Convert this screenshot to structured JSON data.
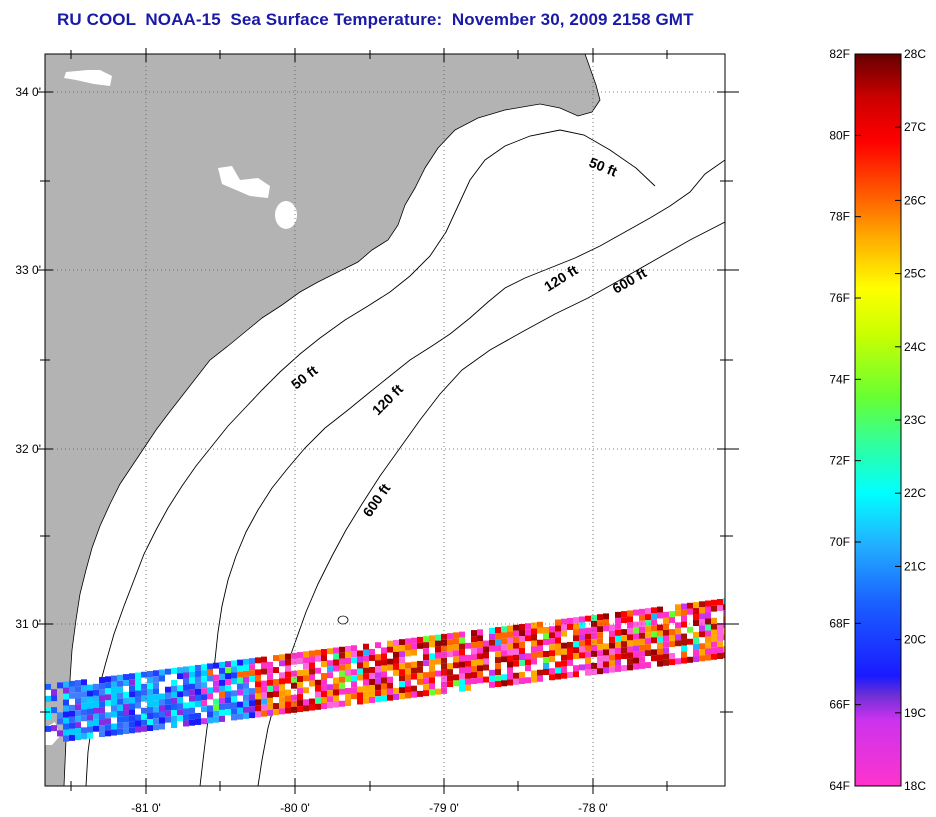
{
  "title": "RU COOL  NOAA-15  Sea Surface Temperature:  November 30, 2009 2158 GMT",
  "map": {
    "lat_labels": [
      "34 0'",
      "33 0'",
      "32 0'",
      "31 0'"
    ],
    "lon_labels": [
      "-81 0'",
      "-80 0'",
      "-79 0'",
      "-78 0'"
    ],
    "grid": true,
    "colors": {
      "land": "#b3b3b3",
      "ocean": "#ffffff",
      "grid": "#555555"
    },
    "contour_labels": [
      {
        "id": "contour-label-50ft-north",
        "text": "50 ft"
      },
      {
        "id": "contour-label-50ft-south",
        "text": "50 ft"
      },
      {
        "id": "contour-label-120ft-north",
        "text": "120 ft"
      },
      {
        "id": "contour-label-120ft-south",
        "text": "120 ft"
      },
      {
        "id": "contour-label-600ft-north",
        "text": "600 ft"
      },
      {
        "id": "contour-label-600ft-south",
        "text": "600 ft"
      }
    ]
  },
  "colorbar": {
    "f_labels": [
      "82F",
      "80F",
      "78F",
      "76F",
      "74F",
      "72F",
      "70F",
      "68F",
      "66F",
      "64F"
    ],
    "c_labels": [
      "28C",
      "27C",
      "26C",
      "25C",
      "24C",
      "23C",
      "22C",
      "21C",
      "20C",
      "19C",
      "18C"
    ],
    "f_range": [
      64,
      82
    ],
    "c_range": [
      18,
      28
    ]
  }
}
